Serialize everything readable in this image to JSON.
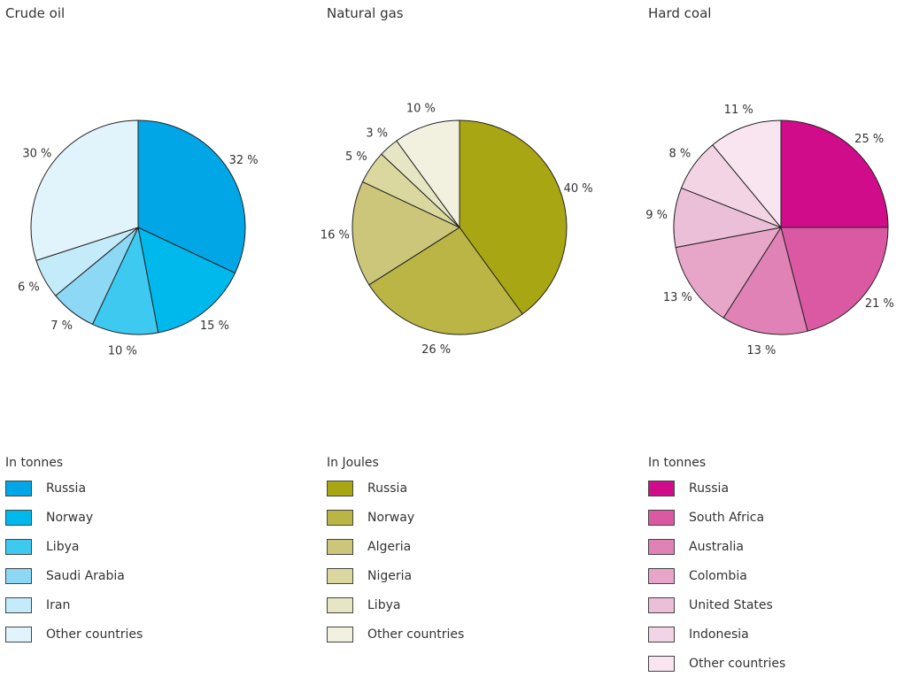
{
  "chart_data": [
    {
      "type": "pie",
      "title": "Crude oil",
      "unit_label": "In tonnes",
      "categories": [
        "Russia",
        "Norway",
        "Libya",
        "Saudi Arabia",
        "Iran",
        "Other countries"
      ],
      "values": [
        32,
        15,
        10,
        7,
        6,
        30
      ],
      "labels": [
        "32 %",
        "15 %",
        "10 %",
        "7 %",
        "6 %",
        "30 %"
      ],
      "colors": [
        "#00a6e6",
        "#00b9ec",
        "#3ec9f1",
        "#8cd8f5",
        "#c4ebfa",
        "#e1f3fb"
      ],
      "legend": "bottom"
    },
    {
      "type": "pie",
      "title": "Natural gas",
      "unit_label": "In Joules",
      "categories": [
        "Russia",
        "Norway",
        "Algeria",
        "Nigeria",
        "Libya",
        "Other countries"
      ],
      "values": [
        40,
        26,
        16,
        5,
        3,
        10
      ],
      "labels": [
        "40 %",
        "26 %",
        "16 %",
        "5 %",
        "3 %",
        "10 %"
      ],
      "colors": [
        "#a8a612",
        "#bbb545",
        "#cbc67a",
        "#dad89f",
        "#e7e6c4",
        "#f2f1e0"
      ],
      "legend": "bottom"
    },
    {
      "type": "pie",
      "title": "Hard coal",
      "unit_label": "In tonnes",
      "categories": [
        "Russia",
        "South Africa",
        "Australia",
        "Colombia",
        "United States",
        "Indonesia",
        "Other countries"
      ],
      "values": [
        25,
        21,
        13,
        13,
        9,
        8,
        11
      ],
      "labels": [
        "25 %",
        "21 %",
        "13 %",
        "13 %",
        "9 %",
        "8 %",
        "11 %"
      ],
      "colors": [
        "#d10c8a",
        "#da59a2",
        "#e082b6",
        "#e7a5c8",
        "#ecbfd8",
        "#f2d4e4",
        "#f8e5ef"
      ],
      "legend": "bottom"
    }
  ]
}
